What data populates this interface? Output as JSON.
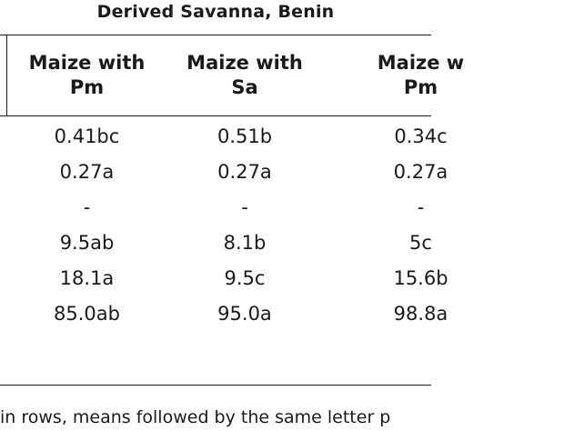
{
  "header": {
    "group_title": "Derived Savanna, Benin"
  },
  "table": {
    "columns": [
      {
        "line1": "Maize with",
        "line2": "Pm"
      },
      {
        "line1": "Maize with",
        "line2": "Sa"
      },
      {
        "line1": "Maize w",
        "line2": "Pm"
      }
    ],
    "rows": [
      [
        "0.41bc",
        "0.51b",
        "0.34c"
      ],
      [
        "0.27a",
        "0.27a",
        "0.27a"
      ],
      [
        "-",
        "-",
        "-"
      ],
      [
        "9.5ab",
        "8.1b",
        "5c"
      ],
      [
        "18.1a",
        "9.5c",
        "15.6b"
      ],
      [
        "85.0ab",
        "95.0a",
        "98.8a"
      ]
    ]
  },
  "footnote": {
    "text": "in rows, means followed by the same letter p"
  }
}
